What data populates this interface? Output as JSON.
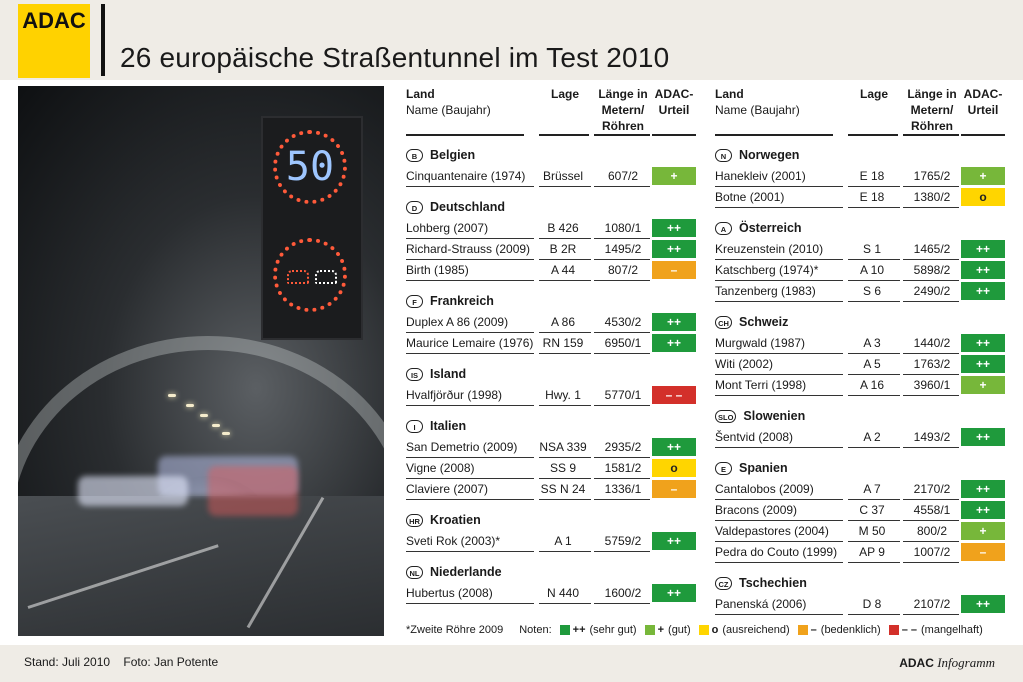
{
  "header": {
    "logo": "ADAC",
    "title": "26 europäische Straßentunnel im Test 2010"
  },
  "columns": {
    "land": "Land",
    "name": "Name (Baujahr)",
    "lage": "Lage",
    "laenge": "Länge in Metern/ Röhren",
    "urteil": "ADAC- Urteil"
  },
  "rating_colors": {
    "sehr_gut": "#1f9a3c",
    "gut": "#77b73a",
    "ausreichend": "#ffd500",
    "bedenklich": "#f0a21c",
    "mangelhaft": "#d3302a"
  },
  "left": [
    {
      "code": "B",
      "country": "Belgien",
      "tunnels": [
        {
          "name": "Cinquantenaire (1974)",
          "lage": "Brüssel",
          "laenge": "607/2",
          "rating": "+",
          "level": "gut"
        }
      ]
    },
    {
      "code": "D",
      "country": "Deutschland",
      "tunnels": [
        {
          "name": "Lohberg (2007)",
          "lage": "B 426",
          "laenge": "1080/1",
          "rating": "++",
          "level": "sehr_gut"
        },
        {
          "name": "Richard-Strauss (2009)",
          "lage": "B 2R",
          "laenge": "1495/2",
          "rating": "++",
          "level": "sehr_gut"
        },
        {
          "name": "Birth (1985)",
          "lage": "A 44",
          "laenge": "807/2",
          "rating": "–",
          "level": "bedenklich"
        }
      ]
    },
    {
      "code": "F",
      "country": "Frankreich",
      "tunnels": [
        {
          "name": "Duplex A 86 (2009)",
          "lage": "A 86",
          "laenge": "4530/2",
          "rating": "++",
          "level": "sehr_gut"
        },
        {
          "name": "Maurice Lemaire (1976)",
          "lage": "RN 159",
          "laenge": "6950/1",
          "rating": "++",
          "level": "sehr_gut"
        }
      ]
    },
    {
      "code": "IS",
      "country": "Island",
      "tunnels": [
        {
          "name": "Hvalfjörður (1998)",
          "lage": "Hwy. 1",
          "laenge": "5770/1",
          "rating": "– –",
          "level": "mangelhaft"
        }
      ]
    },
    {
      "code": "I",
      "country": "Italien",
      "tunnels": [
        {
          "name": "San Demetrio (2009)",
          "lage": "NSA 339",
          "laenge": "2935/2",
          "rating": "++",
          "level": "sehr_gut"
        },
        {
          "name": "Vigne (2008)",
          "lage": "SS 9",
          "laenge": "1581/2",
          "rating": "o",
          "level": "ausreichend"
        },
        {
          "name": "Claviere (2007)",
          "lage": "SS N 24",
          "laenge": "1336/1",
          "rating": "–",
          "level": "bedenklich"
        }
      ]
    },
    {
      "code": "HR",
      "country": "Kroatien",
      "tunnels": [
        {
          "name": "Sveti Rok (2003)*",
          "lage": "A 1",
          "laenge": "5759/2",
          "rating": "++",
          "level": "sehr_gut"
        }
      ]
    },
    {
      "code": "NL",
      "country": "Niederlande",
      "tunnels": [
        {
          "name": "Hubertus (2008)",
          "lage": "N 440",
          "laenge": "1600/2",
          "rating": "++",
          "level": "sehr_gut"
        }
      ]
    }
  ],
  "right": [
    {
      "code": "N",
      "country": "Norwegen",
      "tunnels": [
        {
          "name": "Hanekleiv (2001)",
          "lage": "E 18",
          "laenge": "1765/2",
          "rating": "+",
          "level": "gut"
        },
        {
          "name": "Botne (2001)",
          "lage": "E 18",
          "laenge": "1380/2",
          "rating": "o",
          "level": "ausreichend"
        }
      ]
    },
    {
      "code": "A",
      "country": "Österreich",
      "tunnels": [
        {
          "name": "Kreuzenstein (2010)",
          "lage": "S 1",
          "laenge": "1465/2",
          "rating": "++",
          "level": "sehr_gut"
        },
        {
          "name": "Katschberg (1974)*",
          "lage": "A 10",
          "laenge": "5898/2",
          "rating": "++",
          "level": "sehr_gut"
        },
        {
          "name": "Tanzenberg (1983)",
          "lage": "S 6",
          "laenge": "2490/2",
          "rating": "++",
          "level": "sehr_gut"
        }
      ]
    },
    {
      "code": "CH",
      "country": "Schweiz",
      "tunnels": [
        {
          "name": "Murgwald (1987)",
          "lage": "A 3",
          "laenge": "1440/2",
          "rating": "++",
          "level": "sehr_gut"
        },
        {
          "name": "Witi (2002)",
          "lage": "A 5",
          "laenge": "1763/2",
          "rating": "++",
          "level": "sehr_gut"
        },
        {
          "name": "Mont Terri (1998)",
          "lage": "A 16",
          "laenge": "3960/1",
          "rating": "+",
          "level": "gut"
        }
      ]
    },
    {
      "code": "SLO",
      "country": "Slowenien",
      "tunnels": [
        {
          "name": "Šentvid (2008)",
          "lage": "A 2",
          "laenge": "1493/2",
          "rating": "++",
          "level": "sehr_gut"
        }
      ]
    },
    {
      "code": "E",
      "country": "Spanien",
      "tunnels": [
        {
          "name": "Cantalobos (2009)",
          "lage": "A 7",
          "laenge": "2170/2",
          "rating": "++",
          "level": "sehr_gut"
        },
        {
          "name": "Bracons (2009)",
          "lage": "C 37",
          "laenge": "4558/1",
          "rating": "++",
          "level": "sehr_gut"
        },
        {
          "name": "Valdepastores (2004)",
          "lage": "M 50",
          "laenge": "800/2",
          "rating": "+",
          "level": "gut"
        },
        {
          "name": "Pedra do Couto (1999)",
          "lage": "AP 9",
          "laenge": "1007/2",
          "rating": "–",
          "level": "bedenklich"
        }
      ]
    },
    {
      "code": "CZ",
      "country": "Tschechien",
      "tunnels": [
        {
          "name": "Panenská (2006)",
          "lage": "D 8",
          "laenge": "2107/2",
          "rating": "++",
          "level": "sehr_gut"
        }
      ]
    }
  ],
  "photo": {
    "speed_limit": "50"
  },
  "footnote": "*Zweite Röhre 2009",
  "legend": {
    "label": "Noten:",
    "items": [
      {
        "level": "sehr_gut",
        "symbol": "++",
        "text": "(sehr gut)"
      },
      {
        "level": "gut",
        "symbol": "+",
        "text": "(gut)"
      },
      {
        "level": "ausreichend",
        "symbol": "o",
        "text": "(ausreichend)"
      },
      {
        "level": "bedenklich",
        "symbol": "–",
        "text": "(bedenklich)"
      },
      {
        "level": "mangelhaft",
        "symbol": "– –",
        "text": "(mangelhaft)"
      }
    ]
  },
  "footer": {
    "stand": "Stand: Juli 2010",
    "foto": "Foto: Jan Potente",
    "brand": "ADAC",
    "brand_suffix": "Infogramm"
  }
}
